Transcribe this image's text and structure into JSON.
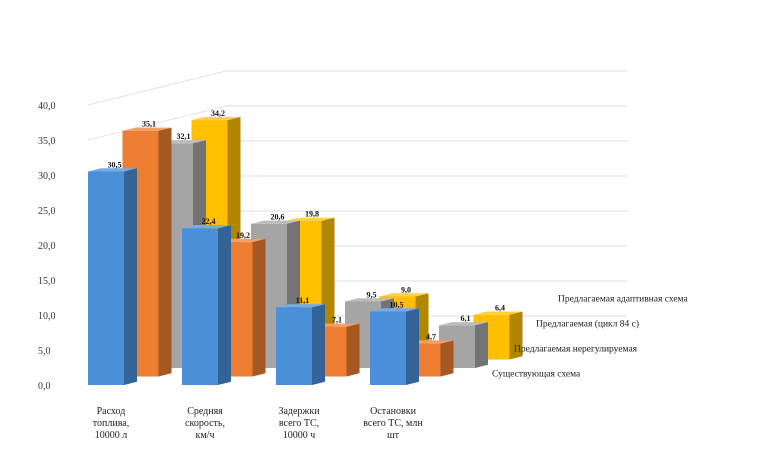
{
  "chart_data": {
    "type": "bar",
    "title": "",
    "xlabel": "",
    "ylabel": "",
    "ylim": [
      0,
      40
    ],
    "y_ticks": [
      "0,0",
      "5,0",
      "10,0",
      "15,0",
      "20,0",
      "25,0",
      "30,0",
      "35,0",
      "40,0"
    ],
    "grid": true,
    "legend": "series names along the depth axis, right",
    "categories": [
      [
        "Расход",
        "топлива,",
        "10000 л"
      ],
      [
        "Средняя",
        "скорость,",
        "км/ч"
      ],
      [
        "Задержки",
        "всего ТС,",
        "10000 ч"
      ],
      [
        "Остановки",
        "всего ТС, млн",
        "шт"
      ]
    ],
    "series": [
      {
        "name": "Существующая схема",
        "color": "#4a8fd8",
        "values": [
          30.5,
          22.4,
          11.1,
          10.5
        ],
        "value_labels": [
          "30,5",
          "22,4",
          "11,1",
          "10,5"
        ]
      },
      {
        "name": "Предлагаемая нерегулируемая",
        "color": "#ed7d31",
        "values": [
          35.1,
          19.2,
          7.1,
          4.7
        ],
        "value_labels": [
          "35,1",
          "19,2",
          "7,1",
          "4,7"
        ]
      },
      {
        "name": "Предлагаемая (цикл 84 с)",
        "color": "#a5a5a5",
        "values": [
          32.1,
          20.6,
          9.5,
          6.1
        ],
        "value_labels": [
          "32,1",
          "20,6",
          "9,5",
          "6,1"
        ]
      },
      {
        "name": "Предлагаемая адаптивная схема",
        "color": "#ffc000",
        "values": [
          34.2,
          19.8,
          9.0,
          6.4
        ],
        "value_labels": [
          "34,2",
          "19,8",
          "9,0",
          "6,4"
        ]
      }
    ]
  }
}
